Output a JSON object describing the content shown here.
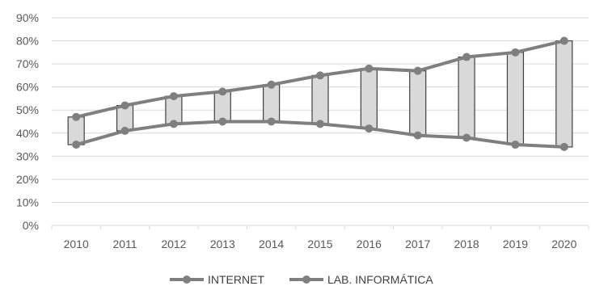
{
  "chart_data": {
    "type": "line",
    "categories": [
      "2010",
      "2011",
      "2012",
      "2013",
      "2014",
      "2015",
      "2016",
      "2017",
      "2018",
      "2019",
      "2020"
    ],
    "series": [
      {
        "name": "INTERNET",
        "values": [
          47,
          52,
          56,
          58,
          61,
          65,
          68,
          67,
          73,
          75,
          80
        ]
      },
      {
        "name": "LAB. INFORMÁTICA",
        "values": [
          35,
          41,
          44,
          45,
          45,
          44,
          42,
          39,
          38,
          35,
          34
        ]
      }
    ],
    "y_ticks": [
      "0%",
      "10%",
      "20%",
      "30%",
      "40%",
      "50%",
      "60%",
      "70%",
      "80%",
      "90%"
    ],
    "ylim": [
      0,
      90
    ],
    "grid": true,
    "legend_position": "bottom",
    "high_low_bars": true,
    "colors": {
      "line": "#7f7f7f",
      "bar_fill": "#d9d9d9",
      "bar_stroke": "#404040",
      "grid": "#d9d9d9"
    }
  }
}
